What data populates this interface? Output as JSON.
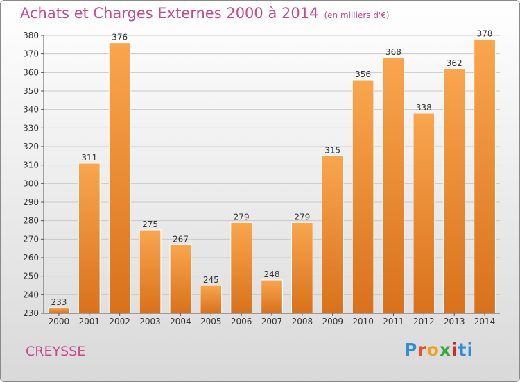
{
  "header": {
    "title": "Achats et Charges Externes 2000 à 2014",
    "unit": "(en milliers d'€)"
  },
  "commune": "CREYSSE",
  "logo": {
    "parts": [
      "P",
      "r",
      "o",
      "x",
      "i",
      "ti"
    ]
  },
  "colors": {
    "bar_top": "#f9a64e",
    "bar_bottom": "#d9711c",
    "title": "#c84a8a"
  },
  "chart_data": {
    "type": "bar",
    "title": "Achats et Charges Externes 2000 à 2014",
    "xlabel": "",
    "ylabel": "",
    "categories": [
      "2000",
      "2001",
      "2002",
      "2003",
      "2004",
      "2005",
      "2006",
      "2007",
      "2008",
      "2009",
      "2010",
      "2011",
      "2012",
      "2013",
      "2014"
    ],
    "values": [
      233,
      311,
      376,
      275,
      267,
      245,
      279,
      248,
      279,
      315,
      356,
      368,
      338,
      362,
      378
    ],
    "ylim": [
      230,
      380
    ],
    "yticks": [
      230,
      240,
      250,
      260,
      270,
      280,
      290,
      300,
      310,
      320,
      330,
      340,
      350,
      360,
      370,
      380
    ],
    "grid": true
  }
}
